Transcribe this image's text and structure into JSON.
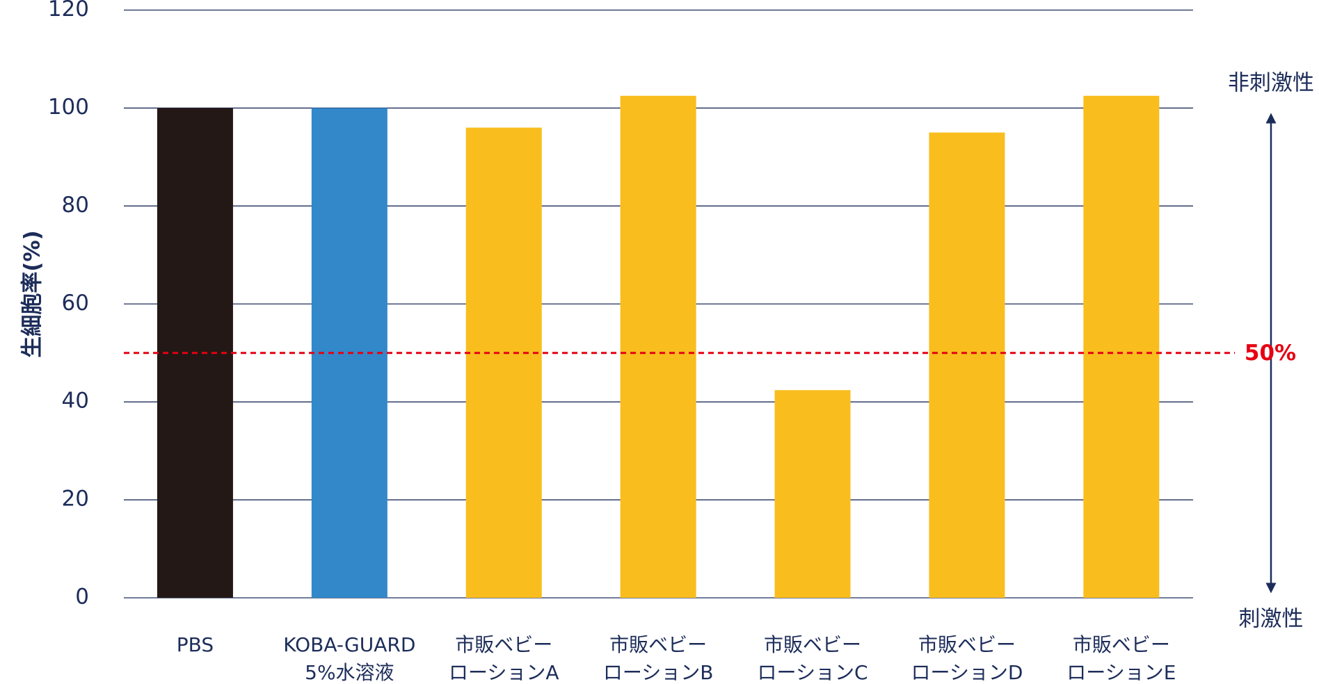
{
  "chart_data": {
    "type": "bar",
    "y_label": "生細胞率(%)",
    "categories": [
      [
        "PBS"
      ],
      [
        "KOBA-GUARD",
        "5%水溶液"
      ],
      [
        "市販ベビー",
        "ローションA"
      ],
      [
        "市販ベビー",
        "ローションB"
      ],
      [
        "市販ベビー",
        "ローションC"
      ],
      [
        "市販ベビー",
        "ローションD"
      ],
      [
        "市販ベビー",
        "ローションE"
      ]
    ],
    "values": [
      100,
      100,
      96,
      102.5,
      42.4,
      95,
      102.5
    ],
    "colors": [
      "#231815",
      "#3288c9",
      "#f9be1e",
      "#f9be1e",
      "#f9be1e",
      "#f9be1e",
      "#f9be1e"
    ],
    "ylim": [
      0,
      120
    ],
    "yticks": [
      0,
      20,
      40,
      60,
      80,
      100,
      120
    ],
    "grid": true,
    "reference_line": {
      "value": 50,
      "label": "50%",
      "color": "#e60012"
    },
    "annotations": {
      "top": "非刺激性",
      "bottom": "刺激性"
    }
  }
}
